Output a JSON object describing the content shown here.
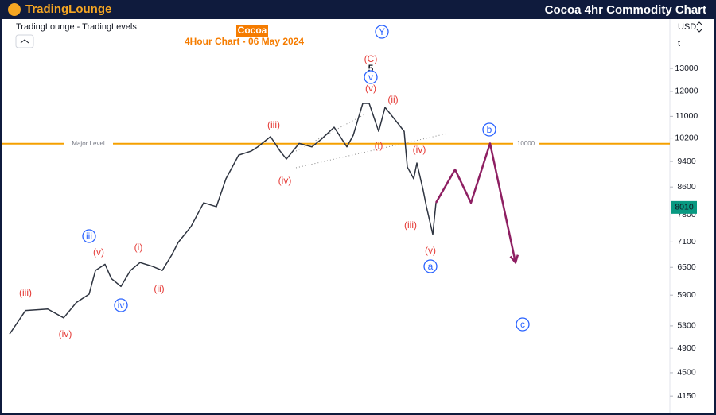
{
  "chart_data": {
    "type": "line",
    "title": "Cocoa 4hr Commodity Chart",
    "brand": "TradingLounge",
    "subtitle": "TradingLounge - TradingLevels",
    "symbol": "Cocoa",
    "chart_label": "4Hour Chart - 06 May 2024",
    "currency": "USD",
    "menu_label": "t",
    "log_scale": true,
    "ylim": [
      3950,
      15440
    ],
    "xlim": [
      -3,
      207
    ],
    "yticks": [
      13000,
      12000,
      11000,
      10200,
      9400,
      8600,
      7800,
      7100,
      6500,
      5900,
      5300,
      4900,
      4500,
      4150
    ],
    "last_price": 8010,
    "major_level": {
      "label": "Major Level",
      "value": 10000
    },
    "series": [
      {
        "name": "Cocoa",
        "color": "#2e3440",
        "x": [
          0,
          5,
          12,
          17,
          21,
          25,
          27,
          30,
          32,
          35,
          38,
          41,
          45,
          48,
          51,
          53,
          57,
          61,
          65,
          68,
          72,
          76,
          78,
          82,
          85,
          87,
          91,
          95,
          98,
          102,
          106,
          108,
          111,
          113,
          116,
          118,
          122,
          124,
          125,
          127,
          128,
          130,
          131,
          133,
          134
        ],
        "values": [
          5150,
          5590,
          5620,
          5450,
          5750,
          5920,
          6430,
          6570,
          6250,
          6080,
          6430,
          6610,
          6520,
          6430,
          6790,
          7090,
          7490,
          8140,
          8030,
          8850,
          9610,
          9750,
          9890,
          10250,
          9750,
          9480,
          10010,
          9890,
          10160,
          10590,
          9890,
          10300,
          11510,
          11510,
          10440,
          11350,
          10740,
          10440,
          9220,
          8850,
          9350,
          8490,
          8030,
          7290,
          8140
        ]
      },
      {
        "name": "Projection",
        "color": "#8e1f62",
        "x": [
          134,
          140,
          145,
          151,
          159
        ],
        "values": [
          8140,
          9140,
          8140,
          10010,
          6610
        ]
      }
    ],
    "annotations": [
      {
        "text": "(iii)",
        "color": "#e53935",
        "circled": false
      },
      {
        "text": "(iv)",
        "color": "#e53935",
        "circled": false
      },
      {
        "text": "iii",
        "color": "#2962ff",
        "circled": true
      },
      {
        "text": "(v)",
        "color": "#e53935",
        "circled": false
      },
      {
        "text": "iv",
        "color": "#2962ff",
        "circled": true
      },
      {
        "text": "(i)",
        "color": "#e53935",
        "circled": false
      },
      {
        "text": "(ii)",
        "color": "#e53935",
        "circled": false
      },
      {
        "text": "(iii)",
        "color": "#e53935",
        "circled": false
      },
      {
        "text": "(iv)",
        "color": "#e53935",
        "circled": false
      },
      {
        "text": "(C)",
        "color": "#e53935",
        "circled": false
      },
      {
        "text": "5",
        "color": "#131722",
        "circled": false
      },
      {
        "text": "v",
        "color": "#2962ff",
        "circled": true
      },
      {
        "text": "(v)",
        "color": "#e53935",
        "circled": false
      },
      {
        "text": "(ii)",
        "color": "#e53935",
        "circled": false
      },
      {
        "text": "(i)",
        "color": "#e53935",
        "circled": false
      },
      {
        "text": "(iv)",
        "color": "#e53935",
        "circled": false
      },
      {
        "text": "(iii)",
        "color": "#e53935",
        "circled": false
      },
      {
        "text": "(v)",
        "color": "#e53935",
        "circled": false
      },
      {
        "text": "a",
        "color": "#2962ff",
        "circled": true
      },
      {
        "text": "b",
        "color": "#2962ff",
        "circled": true
      },
      {
        "text": "c",
        "color": "#2962ff",
        "circled": true
      },
      {
        "text": "Y",
        "color": "#2962ff",
        "circled": true
      }
    ]
  }
}
